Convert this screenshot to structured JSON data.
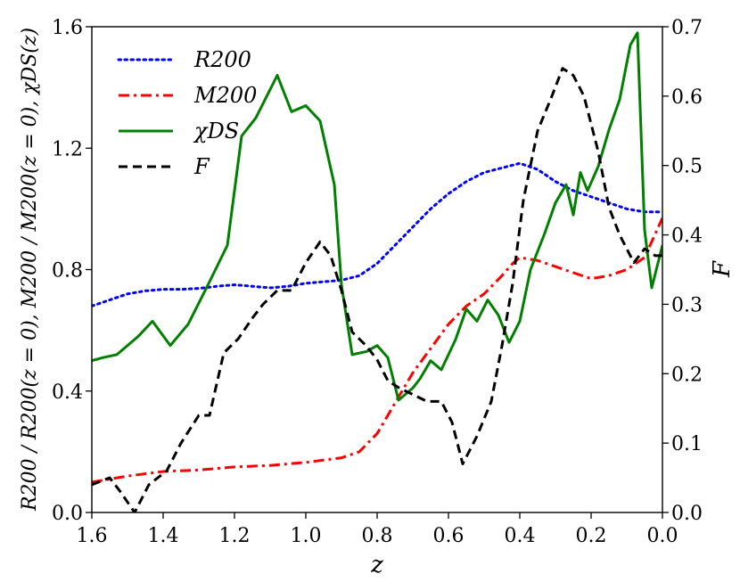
{
  "chart_data": {
    "type": "line",
    "title": "",
    "xlabel": "z",
    "ylabel_left": "R200 / R200(z = 0),  M200 / M200(z = 0),  χDS(z)",
    "ylabel_right": "F",
    "xlim": [
      1.6,
      0.0
    ],
    "ylim_left": [
      0.0,
      1.6
    ],
    "ylim_right": [
      0.0,
      0.7
    ],
    "x_ticks": [
      "1.6",
      "1.4",
      "1.2",
      "1.0",
      "0.8",
      "0.6",
      "0.4",
      "0.2",
      "0.0"
    ],
    "y_ticks_left": [
      "0.0",
      "0.4",
      "0.8",
      "1.2",
      "1.6"
    ],
    "y_ticks_right": [
      "0.0",
      "0.1",
      "0.2",
      "0.3",
      "0.4",
      "0.5",
      "0.6",
      "0.7"
    ],
    "grid": false,
    "legend_position": "top-left",
    "series": [
      {
        "name": "R200",
        "axis": "left",
        "style": "dotted",
        "color": "#0000ff",
        "x": [
          1.6,
          1.55,
          1.5,
          1.45,
          1.4,
          1.35,
          1.3,
          1.25,
          1.2,
          1.15,
          1.1,
          1.05,
          1.0,
          0.95,
          0.9,
          0.85,
          0.8,
          0.75,
          0.7,
          0.65,
          0.6,
          0.55,
          0.5,
          0.45,
          0.4,
          0.35,
          0.3,
          0.25,
          0.2,
          0.15,
          0.1,
          0.05,
          0.0
        ],
        "y": [
          0.68,
          0.7,
          0.72,
          0.73,
          0.735,
          0.735,
          0.738,
          0.745,
          0.75,
          0.745,
          0.74,
          0.745,
          0.755,
          0.76,
          0.765,
          0.78,
          0.82,
          0.88,
          0.94,
          1.0,
          1.05,
          1.09,
          1.12,
          1.135,
          1.15,
          1.13,
          1.09,
          1.06,
          1.04,
          1.02,
          1.0,
          0.99,
          0.99
        ]
      },
      {
        "name": "M200",
        "axis": "left",
        "style": "dashdot",
        "color": "#ff0000",
        "x": [
          1.6,
          1.5,
          1.4,
          1.3,
          1.2,
          1.1,
          1.0,
          0.9,
          0.85,
          0.8,
          0.75,
          0.7,
          0.65,
          0.6,
          0.55,
          0.5,
          0.45,
          0.42,
          0.4,
          0.35,
          0.3,
          0.25,
          0.2,
          0.15,
          0.1,
          0.05,
          0.0
        ],
        "y": [
          0.1,
          0.12,
          0.135,
          0.14,
          0.15,
          0.155,
          0.165,
          0.18,
          0.2,
          0.26,
          0.36,
          0.46,
          0.54,
          0.62,
          0.68,
          0.72,
          0.78,
          0.82,
          0.84,
          0.83,
          0.81,
          0.79,
          0.77,
          0.78,
          0.8,
          0.84,
          0.97
        ]
      },
      {
        "name": "χDS",
        "axis": "left",
        "style": "solid",
        "color": "#008000",
        "x": [
          1.6,
          1.57,
          1.53,
          1.47,
          1.43,
          1.38,
          1.33,
          1.27,
          1.22,
          1.18,
          1.14,
          1.08,
          1.04,
          1.0,
          0.96,
          0.92,
          0.9,
          0.87,
          0.83,
          0.8,
          0.77,
          0.74,
          0.7,
          0.68,
          0.65,
          0.62,
          0.58,
          0.55,
          0.52,
          0.49,
          0.46,
          0.43,
          0.4,
          0.37,
          0.33,
          0.3,
          0.27,
          0.25,
          0.23,
          0.21,
          0.18,
          0.15,
          0.12,
          0.09,
          0.07,
          0.05,
          0.03,
          0.0
        ],
        "y": [
          0.5,
          0.51,
          0.52,
          0.58,
          0.63,
          0.55,
          0.62,
          0.76,
          0.88,
          1.24,
          1.3,
          1.44,
          1.32,
          1.34,
          1.29,
          1.08,
          0.75,
          0.52,
          0.53,
          0.55,
          0.51,
          0.37,
          0.41,
          0.44,
          0.5,
          0.47,
          0.57,
          0.67,
          0.63,
          0.7,
          0.65,
          0.56,
          0.63,
          0.8,
          0.92,
          1.02,
          1.08,
          0.98,
          1.12,
          1.06,
          1.14,
          1.26,
          1.36,
          1.54,
          1.58,
          0.93,
          0.74,
          0.88
        ]
      },
      {
        "name": "F",
        "axis": "right",
        "style": "dashed",
        "color": "#000000",
        "x": [
          1.6,
          1.55,
          1.52,
          1.48,
          1.44,
          1.39,
          1.35,
          1.3,
          1.27,
          1.23,
          1.19,
          1.15,
          1.12,
          1.08,
          1.04,
          1.0,
          0.96,
          0.93,
          0.9,
          0.87,
          0.83,
          0.8,
          0.77,
          0.74,
          0.7,
          0.66,
          0.62,
          0.59,
          0.56,
          0.52,
          0.48,
          0.45,
          0.42,
          0.39,
          0.35,
          0.31,
          0.28,
          0.25,
          0.22,
          0.18,
          0.15,
          0.12,
          0.08,
          0.05,
          0.02,
          0.0
        ],
        "y": [
          0.04,
          0.05,
          0.03,
          0.0,
          0.04,
          0.06,
          0.1,
          0.14,
          0.14,
          0.23,
          0.25,
          0.28,
          0.3,
          0.32,
          0.32,
          0.36,
          0.39,
          0.37,
          0.32,
          0.26,
          0.24,
          0.22,
          0.19,
          0.18,
          0.17,
          0.16,
          0.16,
          0.13,
          0.07,
          0.11,
          0.16,
          0.24,
          0.33,
          0.45,
          0.55,
          0.6,
          0.64,
          0.63,
          0.6,
          0.52,
          0.44,
          0.4,
          0.36,
          0.38,
          0.37,
          0.37
        ]
      }
    ],
    "legend": [
      {
        "label": "R200",
        "base": "R",
        "sub": "200"
      },
      {
        "label": "M200",
        "base": "M",
        "sub": "200"
      },
      {
        "label": "χDS",
        "base": "χ",
        "sub": "DS"
      },
      {
        "label": "F",
        "base": "F",
        "sub": ""
      }
    ]
  }
}
